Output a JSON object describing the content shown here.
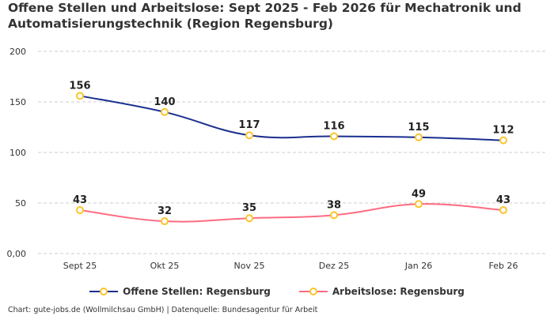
{
  "chart_data": {
    "type": "line",
    "title": "Offene Stellen und Arbeitslose: Sept 2025 - Feb 2026 für Mechatronik und Automatisierungstechnik (Region Regensburg)",
    "categories": [
      "Sept 25",
      "Okt 25",
      "Nov 25",
      "Dez 25",
      "Jan 26",
      "Feb 26"
    ],
    "ylim": [
      0,
      200
    ],
    "yticks": [
      0,
      50,
      100,
      150,
      200
    ],
    "ytick_labels": [
      "0,00",
      "50",
      "100",
      "150",
      "200"
    ],
    "grid": true,
    "legend_position": "bottom",
    "marker_color": "#fcc42c",
    "series": [
      {
        "name": "Offene Stellen: Regensburg",
        "color": "#1a2f8f",
        "values": [
          156,
          140,
          117,
          116,
          115,
          112
        ]
      },
      {
        "name": "Arbeitslose: Regensburg",
        "color": "#ff6b81",
        "values": [
          43,
          32,
          35,
          38,
          49,
          43
        ]
      }
    ]
  },
  "footer": "Chart: gute-jobs.de (Wollmilchsau GmbH) | Datenquelle: Bundesagentur für Arbeit"
}
